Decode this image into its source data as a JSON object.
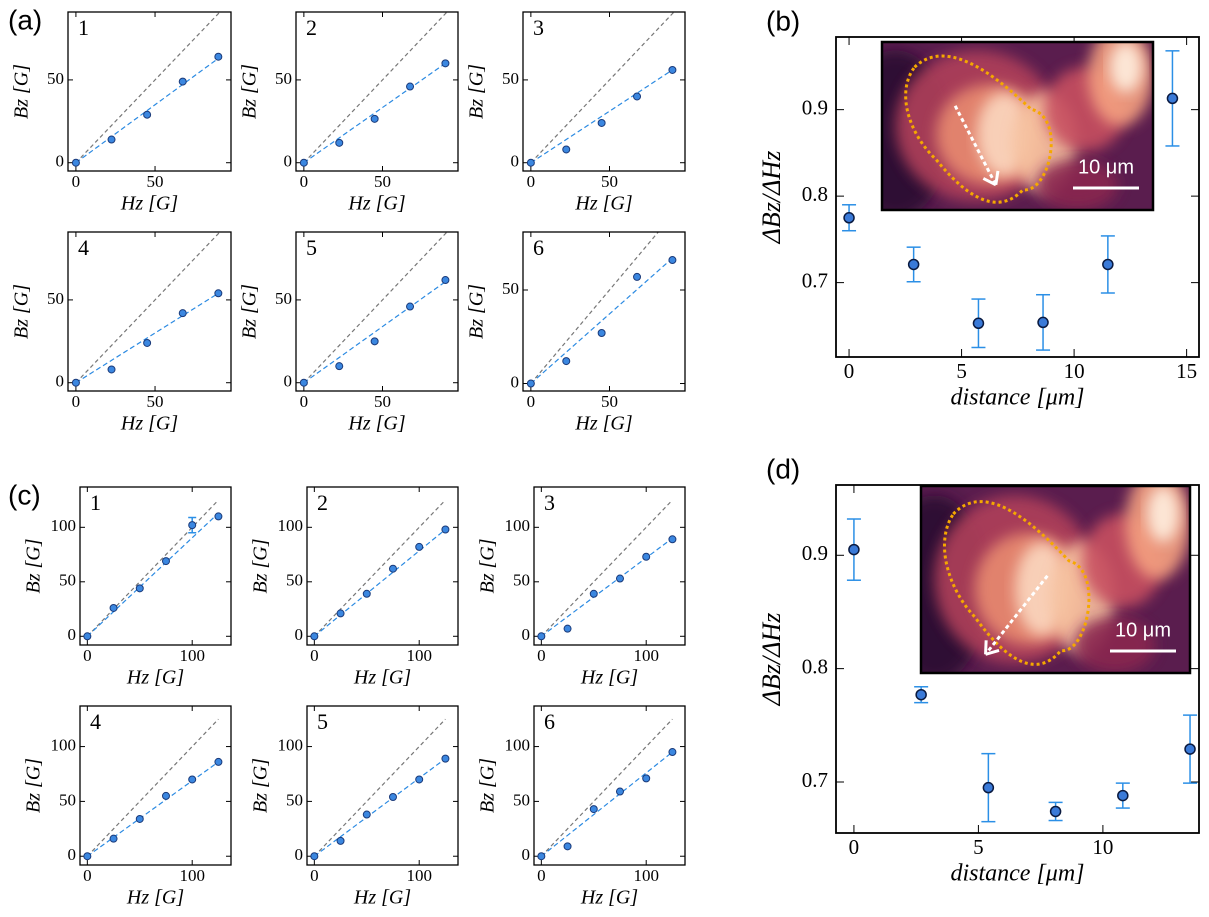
{
  "chart_data": [
    {
      "type": "scatter",
      "panel_label": "(a)",
      "number": "1",
      "xlabel": "Hz [G]",
      "ylabel": "Bz [G]",
      "x": [
        0,
        22.5,
        45,
        67.5,
        90
      ],
      "values": [
        0,
        14,
        29,
        49,
        64
      ],
      "fit_x": [
        0,
        90
      ],
      "fit_y": [
        0,
        63
      ],
      "ref_x": [
        0,
        91
      ],
      "ref_y": [
        0,
        91
      ],
      "xlim": [
        -5,
        98
      ],
      "ylim": [
        -5,
        91
      ],
      "xticks": [
        0,
        50
      ],
      "yticks": [
        0,
        50
      ],
      "color": "#3b87e0"
    },
    {
      "type": "scatter",
      "number": "2",
      "xlabel": "Hz [G]",
      "ylabel": "Bz [G]",
      "x": [
        0,
        22.5,
        45,
        67.5,
        90
      ],
      "values": [
        0,
        12,
        26.5,
        46,
        60
      ],
      "fit_x": [
        0,
        90
      ],
      "fit_y": [
        0,
        60
      ],
      "ref_x": [
        0,
        91
      ],
      "ref_y": [
        0,
        91
      ],
      "xlim": [
        -5,
        98
      ],
      "ylim": [
        -5,
        91
      ],
      "xticks": [
        0,
        50
      ],
      "yticks": [
        0,
        50
      ],
      "color": "#3b87e0"
    },
    {
      "type": "scatter",
      "number": "3",
      "xlabel": "Hz [G]",
      "ylabel": "Bz [G]",
      "x": [
        0,
        22.5,
        45,
        67.5,
        90
      ],
      "values": [
        0,
        8,
        24,
        40,
        56
      ],
      "fit_x": [
        0,
        90
      ],
      "fit_y": [
        0,
        56
      ],
      "ref_x": [
        0,
        91
      ],
      "ref_y": [
        0,
        91
      ],
      "xlim": [
        -5,
        98
      ],
      "ylim": [
        -5,
        91
      ],
      "xticks": [
        0,
        50
      ],
      "yticks": [
        0,
        50
      ],
      "color": "#3b87e0"
    },
    {
      "type": "scatter",
      "number": "4",
      "xlabel": "Hz [G]",
      "ylabel": "Bz [G]",
      "x": [
        0,
        22.5,
        45,
        67.5,
        90
      ],
      "values": [
        0,
        8,
        24,
        42,
        54
      ],
      "fit_x": [
        0,
        90
      ],
      "fit_y": [
        0,
        54
      ],
      "ref_x": [
        0,
        91
      ],
      "ref_y": [
        0,
        91
      ],
      "xlim": [
        -5,
        98
      ],
      "ylim": [
        -5,
        91
      ],
      "xticks": [
        0,
        50
      ],
      "yticks": [
        0,
        50
      ],
      "color": "#3b87e0"
    },
    {
      "type": "scatter",
      "number": "5",
      "xlabel": "Hz [G]",
      "ylabel": "Bz [G]",
      "x": [
        0,
        22.5,
        45,
        67.5,
        90
      ],
      "values": [
        0,
        10,
        25,
        46,
        62
      ],
      "fit_x": [
        0,
        90
      ],
      "fit_y": [
        0,
        61
      ],
      "ref_x": [
        0,
        91
      ],
      "ref_y": [
        0,
        91
      ],
      "xlim": [
        -5,
        98
      ],
      "ylim": [
        -5,
        91
      ],
      "xticks": [
        0,
        50
      ],
      "yticks": [
        0,
        50
      ],
      "color": "#3b87e0"
    },
    {
      "type": "scatter",
      "number": "6",
      "xlabel": "Hz [G]",
      "ylabel": "Bz [G]",
      "x": [
        0,
        22.5,
        45,
        67.5,
        90
      ],
      "values": [
        0,
        12,
        27,
        57,
        66
      ],
      "fit_x": [
        0,
        90
      ],
      "fit_y": [
        0,
        67
      ],
      "ref_x": [
        0,
        81
      ],
      "ref_y": [
        0,
        81
      ],
      "xlim": [
        -5,
        98
      ],
      "ylim": [
        -4,
        81
      ],
      "xticks": [
        0,
        50
      ],
      "yticks": [
        0,
        50
      ],
      "color": "#3b87e0"
    },
    {
      "type": "errorbar",
      "panel_label": "(b)",
      "xlabel": "distance [μm]",
      "ylabel": "ΔBz/ΔHz",
      "scale_bar_label": "10 μm",
      "x": [
        0,
        2.87,
        5.75,
        8.62,
        11.5,
        14.37
      ],
      "values": [
        0.775,
        0.721,
        0.653,
        0.654,
        0.721,
        0.913
      ],
      "errors": [
        0.015,
        0.02,
        0.028,
        0.032,
        0.033,
        0.055
      ],
      "xlim": [
        -0.58,
        15.55
      ],
      "ylim": [
        0.614,
        0.984
      ],
      "xticks": [
        0,
        5,
        10,
        15
      ],
      "yticks": [
        0.7,
        0.8,
        0.9
      ],
      "color": "#3a7ad8"
    },
    {
      "type": "scatter",
      "panel_label": "(c)",
      "number": "1",
      "xlabel": "Hz [G]",
      "ylabel": "Bz [G]",
      "x": [
        0,
        25,
        50,
        75,
        100,
        125
      ],
      "values": [
        0,
        26,
        44,
        69,
        102,
        110
      ],
      "errors": [
        null,
        null,
        null,
        null,
        7,
        null
      ],
      "fit_x": [
        0,
        125
      ],
      "fit_y": [
        0,
        113
      ],
      "ref_x": [
        0,
        125
      ],
      "ref_y": [
        0,
        125
      ],
      "xlim": [
        -7,
        137
      ],
      "ylim": [
        -8,
        137
      ],
      "xticks": [
        0,
        100
      ],
      "yticks": [
        0,
        50,
        100
      ],
      "color": "#3b87e0"
    },
    {
      "type": "scatter",
      "number": "2",
      "xlabel": "Hz [G]",
      "ylabel": "Bz [G]",
      "x": [
        0,
        25,
        50,
        75,
        100,
        125
      ],
      "values": [
        0,
        21,
        39,
        62,
        82,
        98
      ],
      "fit_x": [
        0,
        125
      ],
      "fit_y": [
        0,
        98
      ],
      "ref_x": [
        0,
        125
      ],
      "ref_y": [
        0,
        125
      ],
      "xlim": [
        -7,
        137
      ],
      "ylim": [
        -8,
        137
      ],
      "xticks": [
        0,
        100
      ],
      "yticks": [
        0,
        50,
        100
      ],
      "color": "#3b87e0"
    },
    {
      "type": "scatter",
      "number": "3",
      "xlabel": "Hz [G]",
      "ylabel": "Bz [G]",
      "x": [
        0,
        25,
        50,
        75,
        100,
        125
      ],
      "values": [
        0,
        7,
        39,
        53,
        73,
        89
      ],
      "fit_x": [
        0,
        125
      ],
      "fit_y": [
        0,
        90
      ],
      "ref_x": [
        0,
        125
      ],
      "ref_y": [
        0,
        125
      ],
      "xlim": [
        -7,
        137
      ],
      "ylim": [
        -8,
        137
      ],
      "xticks": [
        0,
        100
      ],
      "yticks": [
        0,
        50,
        100
      ],
      "color": "#3b87e0"
    },
    {
      "type": "scatter",
      "number": "4",
      "xlabel": "Hz [G]",
      "ylabel": "Bz [G]",
      "x": [
        0,
        25,
        50,
        75,
        100,
        125
      ],
      "values": [
        0,
        16,
        34,
        55,
        70,
        86
      ],
      "fit_x": [
        0,
        125
      ],
      "fit_y": [
        0,
        86
      ],
      "ref_x": [
        0,
        125
      ],
      "ref_y": [
        0,
        125
      ],
      "xlim": [
        -7,
        137
      ],
      "ylim": [
        -8,
        137
      ],
      "xticks": [
        0,
        100
      ],
      "yticks": [
        0,
        50,
        100
      ],
      "color": "#3b87e0"
    },
    {
      "type": "scatter",
      "number": "5",
      "xlabel": "Hz [G]",
      "ylabel": "Bz [G]",
      "x": [
        0,
        25,
        50,
        75,
        100,
        125
      ],
      "values": [
        0,
        14,
        38,
        54,
        70,
        89
      ],
      "fit_x": [
        0,
        125
      ],
      "fit_y": [
        0,
        89
      ],
      "ref_x": [
        0,
        125
      ],
      "ref_y": [
        0,
        125
      ],
      "xlim": [
        -7,
        137
      ],
      "ylim": [
        -8,
        137
      ],
      "xticks": [
        0,
        100
      ],
      "yticks": [
        0,
        50,
        100
      ],
      "color": "#3b87e0"
    },
    {
      "type": "scatter",
      "number": "6",
      "xlabel": "Hz [G]",
      "ylabel": "Bz [G]",
      "x": [
        0,
        25,
        50,
        75,
        100,
        125
      ],
      "values": [
        0,
        9,
        43,
        59,
        71,
        95
      ],
      "fit_x": [
        0,
        125
      ],
      "fit_y": [
        0,
        95
      ],
      "ref_x": [
        0,
        125
      ],
      "ref_y": [
        0,
        125
      ],
      "xlim": [
        -7,
        137
      ],
      "ylim": [
        -8,
        137
      ],
      "xticks": [
        0,
        100
      ],
      "yticks": [
        0,
        50,
        100
      ],
      "color": "#3b87e0"
    },
    {
      "type": "errorbar",
      "panel_label": "(d)",
      "xlabel": "distance [μm]",
      "ylabel": "ΔBz/ΔHz",
      "scale_bar_label": "10 μm",
      "x": [
        0,
        2.7,
        5.4,
        8.1,
        10.8,
        13.5
      ],
      "values": [
        0.905,
        0.777,
        0.695,
        0.674,
        0.688,
        0.729
      ],
      "errors": [
        0.027,
        0.007,
        0.03,
        0.008,
        0.011,
        0.03
      ],
      "xlim": [
        -0.72,
        13.86
      ],
      "ylim": [
        0.655,
        0.962
      ],
      "xticks": [
        0,
        5,
        10
      ],
      "yticks": [
        0.7,
        0.8,
        0.9
      ],
      "color": "#3a7ad8"
    }
  ]
}
